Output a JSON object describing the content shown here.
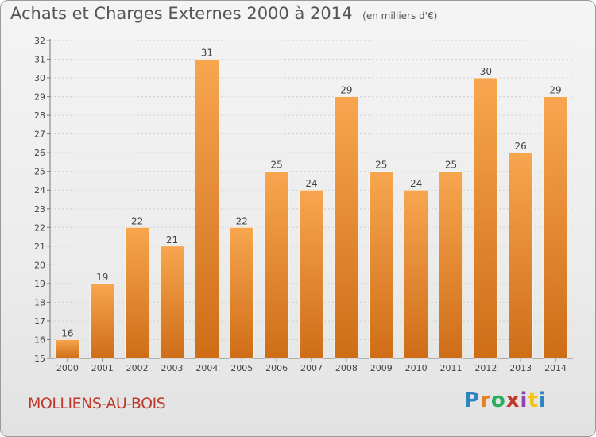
{
  "title": "Achats et Charges Externes 2000 à 2014",
  "subtitle": "(en milliers d'€)",
  "commune": "MOLLIENS-AU-BOIS",
  "logo": {
    "text": "Proxiti",
    "letters": [
      "P",
      "r",
      "o",
      "x",
      "i",
      "t",
      "i"
    ]
  },
  "colors": {
    "bar_top": "#f7a64f",
    "bar_bottom": "#cf6d17",
    "title": "#555555",
    "commune": "#c0392b"
  },
  "chart_data": {
    "type": "bar",
    "categories": [
      "2000",
      "2001",
      "2002",
      "2003",
      "2004",
      "2005",
      "2006",
      "2007",
      "2008",
      "2009",
      "2010",
      "2011",
      "2012",
      "2013",
      "2014"
    ],
    "values": [
      16,
      19,
      22,
      21,
      31,
      22,
      25,
      24,
      29,
      25,
      24,
      25,
      30,
      26,
      29
    ],
    "title": "Achats et Charges Externes 2000 à 2014",
    "ylim": [
      15,
      32
    ],
    "yticks": [
      15,
      16,
      17,
      18,
      19,
      20,
      21,
      22,
      23,
      24,
      25,
      26,
      27,
      28,
      29,
      30,
      31,
      32
    ],
    "grid": true,
    "data_labels": true
  }
}
